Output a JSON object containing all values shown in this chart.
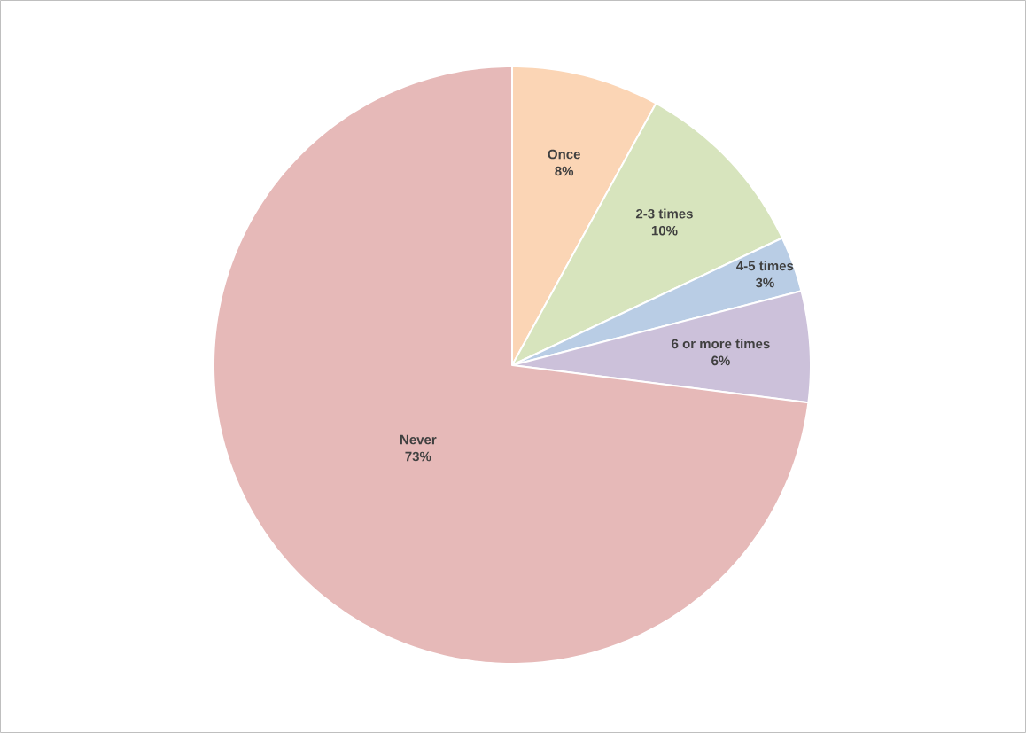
{
  "chart_data": {
    "type": "pie",
    "categories": [
      "Once",
      "2-3 times",
      "4-5 times",
      "6 or more times",
      "Never"
    ],
    "values": [
      8,
      10,
      3,
      6,
      73
    ],
    "value_labels": [
      "8%",
      "10%",
      "3%",
      "6%",
      "73%"
    ],
    "colors": [
      "#fbd5b5",
      "#d7e4bd",
      "#b9cde5",
      "#ccc1da",
      "#e6b9b8"
    ]
  }
}
